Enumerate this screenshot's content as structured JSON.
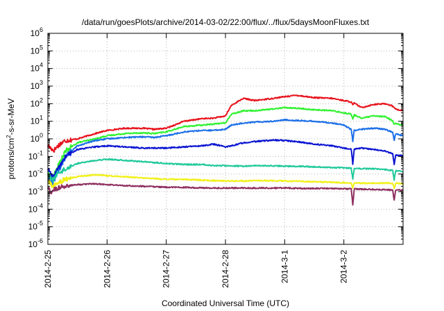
{
  "chart_data": {
    "type": "line",
    "title": "/data/run/goesPlots/archive/2014-03-02/22:00/flux/../flux/5daysMoonFluxes.txt",
    "xlabel": "Coordinated Universal Time (UTC)",
    "ylabel_prefix": "protons/cm",
    "ylabel_sup": "2",
    "ylabel_suffix": "-s-sr-MeV",
    "x_ticks": [
      "2014-2-25",
      "2014-2-26",
      "2014-2-27",
      "2014-2-28",
      "2014-3-1",
      "2014-3-2"
    ],
    "xlim_days": [
      0,
      6.0
    ],
    "y_scale": "log",
    "ylim": [
      1e-06,
      1000000.0
    ],
    "y_tick_exponents": [
      -6,
      -5,
      -4,
      -3,
      -2,
      -1,
      0,
      1,
      2,
      3,
      4,
      5,
      6
    ],
    "y_tick_base": "10",
    "grid": true,
    "legend": "none",
    "x_unit": "days since 2014-2-25 00:00 UTC",
    "series": [
      {
        "color": "#e8141d",
        "points": [
          [
            0.0,
            0.4
          ],
          [
            0.1,
            0.22
          ],
          [
            0.2,
            0.5
          ],
          [
            0.3,
            0.8
          ],
          [
            0.5,
            1.0
          ],
          [
            0.8,
            2.0
          ],
          [
            1.0,
            3.0
          ],
          [
            1.3,
            4.0
          ],
          [
            1.6,
            4.0
          ],
          [
            1.8,
            3.5
          ],
          [
            2.0,
            4.0
          ],
          [
            2.3,
            10
          ],
          [
            2.6,
            14
          ],
          [
            2.8,
            15
          ],
          [
            3.0,
            20
          ],
          [
            3.1,
            80
          ],
          [
            3.3,
            200
          ],
          [
            3.5,
            150
          ],
          [
            3.8,
            200
          ],
          [
            4.0,
            250
          ],
          [
            4.2,
            300
          ],
          [
            4.5,
            220
          ],
          [
            4.8,
            200
          ],
          [
            5.0,
            150
          ],
          [
            5.15,
            120
          ],
          [
            5.3,
            60
          ],
          [
            5.5,
            90
          ],
          [
            5.7,
            100
          ],
          [
            5.8,
            80
          ],
          [
            5.9,
            45
          ],
          [
            6.0,
            40
          ]
        ]
      },
      {
        "color": "#2ef22e",
        "points": [
          [
            0.0,
            0.01
          ],
          [
            0.08,
            0.005
          ],
          [
            0.15,
            0.02
          ],
          [
            0.3,
            0.2
          ],
          [
            0.5,
            0.6
          ],
          [
            0.8,
            1.0
          ],
          [
            1.0,
            1.5
          ],
          [
            1.3,
            2.0
          ],
          [
            1.6,
            2.2
          ],
          [
            1.8,
            2.0
          ],
          [
            2.0,
            2.5
          ],
          [
            2.3,
            5.0
          ],
          [
            2.6,
            6.0
          ],
          [
            2.8,
            7.0
          ],
          [
            3.0,
            8.0
          ],
          [
            3.1,
            25
          ],
          [
            3.3,
            40
          ],
          [
            3.5,
            40
          ],
          [
            3.8,
            50
          ],
          [
            4.0,
            60
          ],
          [
            4.2,
            55
          ],
          [
            4.5,
            45
          ],
          [
            4.8,
            40
          ],
          [
            5.0,
            30
          ],
          [
            5.15,
            25
          ],
          [
            5.3,
            15
          ],
          [
            5.5,
            20
          ],
          [
            5.7,
            18
          ],
          [
            5.8,
            12
          ],
          [
            5.9,
            7
          ],
          [
            6.0,
            6
          ]
        ]
      },
      {
        "color": "#1c6fe8",
        "points": [
          [
            0.0,
            0.005
          ],
          [
            0.08,
            0.003
          ],
          [
            0.15,
            0.01
          ],
          [
            0.3,
            0.1
          ],
          [
            0.5,
            0.4
          ],
          [
            0.8,
            0.8
          ],
          [
            1.0,
            1.0
          ],
          [
            1.3,
            1.2
          ],
          [
            1.6,
            1.3
          ],
          [
            1.8,
            1.2
          ],
          [
            2.0,
            1.5
          ],
          [
            2.3,
            2.5
          ],
          [
            2.6,
            3.0
          ],
          [
            2.8,
            3.0
          ],
          [
            3.0,
            3.5
          ],
          [
            3.1,
            6.0
          ],
          [
            3.3,
            8.0
          ],
          [
            3.5,
            9.0
          ],
          [
            3.8,
            10
          ],
          [
            4.0,
            12
          ],
          [
            4.2,
            11
          ],
          [
            4.5,
            10
          ],
          [
            4.8,
            8.0
          ],
          [
            5.0,
            6.0
          ],
          [
            5.15,
            3.0
          ],
          [
            5.3,
            3.5
          ],
          [
            5.5,
            4.0
          ],
          [
            5.7,
            3.5
          ],
          [
            5.8,
            2.5
          ],
          [
            5.9,
            1.8
          ],
          [
            6.0,
            1.5
          ]
        ]
      },
      {
        "color": "#0a14d2",
        "points": [
          [
            0.0,
            0.02
          ],
          [
            0.08,
            0.006
          ],
          [
            0.15,
            0.015
          ],
          [
            0.3,
            0.1
          ],
          [
            0.5,
            0.25
          ],
          [
            0.8,
            0.35
          ],
          [
            1.0,
            0.4
          ],
          [
            1.3,
            0.35
          ],
          [
            1.6,
            0.3
          ],
          [
            1.8,
            0.3
          ],
          [
            2.0,
            0.3
          ],
          [
            2.3,
            0.35
          ],
          [
            2.6,
            0.4
          ],
          [
            2.8,
            0.5
          ],
          [
            3.0,
            0.35
          ],
          [
            3.1,
            0.4
          ],
          [
            3.3,
            0.6
          ],
          [
            3.5,
            0.7
          ],
          [
            3.8,
            0.85
          ],
          [
            4.0,
            0.8
          ],
          [
            4.2,
            0.7
          ],
          [
            4.5,
            0.5
          ],
          [
            4.8,
            0.4
          ],
          [
            5.0,
            0.3
          ],
          [
            5.15,
            0.25
          ],
          [
            5.3,
            0.3
          ],
          [
            5.5,
            0.25
          ],
          [
            5.7,
            0.2
          ],
          [
            5.8,
            0.15
          ],
          [
            5.9,
            0.12
          ],
          [
            6.0,
            0.11
          ]
        ]
      },
      {
        "color": "#1ec99a",
        "points": [
          [
            0.0,
            0.01
          ],
          [
            0.08,
            0.004
          ],
          [
            0.15,
            0.01
          ],
          [
            0.3,
            0.02
          ],
          [
            0.5,
            0.04
          ],
          [
            0.8,
            0.06
          ],
          [
            1.0,
            0.07
          ],
          [
            1.3,
            0.06
          ],
          [
            1.6,
            0.05
          ],
          [
            1.8,
            0.045
          ],
          [
            2.0,
            0.04
          ],
          [
            2.3,
            0.035
          ],
          [
            2.6,
            0.035
          ],
          [
            2.8,
            0.03
          ],
          [
            3.0,
            0.03
          ],
          [
            3.3,
            0.028
          ],
          [
            3.6,
            0.03
          ],
          [
            4.0,
            0.028
          ],
          [
            4.3,
            0.027
          ],
          [
            4.6,
            0.025
          ],
          [
            5.0,
            0.022
          ],
          [
            5.3,
            0.02
          ],
          [
            5.5,
            0.02
          ],
          [
            5.7,
            0.018
          ],
          [
            5.9,
            0.015
          ],
          [
            6.0,
            0.014
          ]
        ]
      },
      {
        "color": "#f0f019",
        "points": [
          [
            0.0,
            0.004
          ],
          [
            0.08,
            0.002
          ],
          [
            0.15,
            0.003
          ],
          [
            0.3,
            0.005
          ],
          [
            0.5,
            0.007
          ],
          [
            0.8,
            0.009
          ],
          [
            1.0,
            0.008
          ],
          [
            1.3,
            0.007
          ],
          [
            1.6,
            0.006
          ],
          [
            1.8,
            0.0055
          ],
          [
            2.0,
            0.005
          ],
          [
            2.3,
            0.005
          ],
          [
            2.6,
            0.0045
          ],
          [
            3.0,
            0.004
          ],
          [
            3.3,
            0.004
          ],
          [
            3.6,
            0.0042
          ],
          [
            4.0,
            0.004
          ],
          [
            4.3,
            0.0038
          ],
          [
            4.6,
            0.0036
          ],
          [
            5.0,
            0.0032
          ],
          [
            5.3,
            0.003
          ],
          [
            5.6,
            0.003
          ],
          [
            5.9,
            0.003
          ],
          [
            6.0,
            0.0028
          ]
        ]
      },
      {
        "color": "#8e2e5e",
        "points": [
          [
            0.0,
            0.0015
          ],
          [
            0.08,
            0.0012
          ],
          [
            0.15,
            0.0015
          ],
          [
            0.3,
            0.002
          ],
          [
            0.5,
            0.0025
          ],
          [
            0.8,
            0.0028
          ],
          [
            1.0,
            0.0025
          ],
          [
            1.3,
            0.0022
          ],
          [
            1.6,
            0.002
          ],
          [
            2.0,
            0.0018
          ],
          [
            2.4,
            0.0017
          ],
          [
            2.8,
            0.0016
          ],
          [
            3.2,
            0.0016
          ],
          [
            3.6,
            0.0016
          ],
          [
            4.0,
            0.0016
          ],
          [
            4.4,
            0.0015
          ],
          [
            4.8,
            0.0015
          ],
          [
            5.2,
            0.0014
          ],
          [
            5.6,
            0.0013
          ],
          [
            6.0,
            0.0012
          ]
        ]
      }
    ],
    "dips": [
      {
        "x": 0.05,
        "factors": [
          1,
          1,
          1,
          1,
          1,
          1,
          0.5
        ]
      },
      {
        "x": 5.15,
        "factors": [
          0.7,
          0.5,
          0.25,
          0.15,
          0.25,
          0.5,
          0.12
        ]
      },
      {
        "x": 5.85,
        "factors": [
          1,
          0.7,
          0.4,
          0.25,
          0.3,
          0.5,
          0.25
        ]
      }
    ]
  }
}
